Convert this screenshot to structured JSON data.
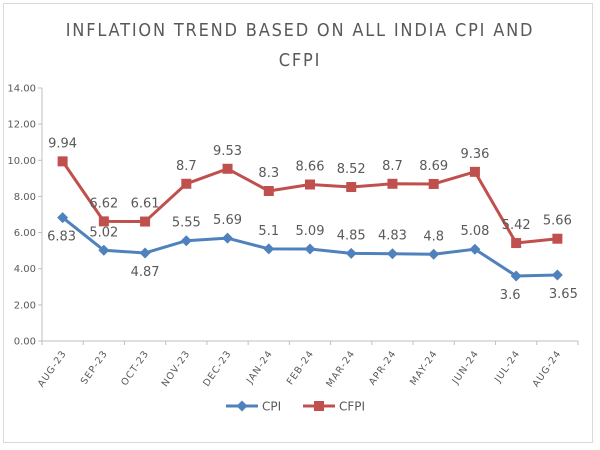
{
  "chart_data": {
    "type": "line",
    "title_line1": "INFLATION TREND BASED ON ALL INDIA CPI AND",
    "title_line2": "CFPI",
    "xlabel": "",
    "ylabel": "",
    "ylim": [
      0,
      14
    ],
    "y_ticks": [
      "0.00",
      "2.00",
      "4.00",
      "6.00",
      "8.00",
      "10.00",
      "12.00",
      "14.00"
    ],
    "categories": [
      "AUG-23",
      "SEP-23",
      "OCT-23",
      "NOV-23",
      "DEC-23",
      "JAN-24",
      "FEB-24",
      "MAR-24",
      "APR-24",
      "MAY-24",
      "JUN-24",
      "JUL-24",
      "AUG-24"
    ],
    "series": [
      {
        "name": "CPI",
        "color": "#4f81bd",
        "marker": "diamond",
        "values": [
          6.83,
          5.02,
          4.87,
          5.55,
          5.69,
          5.1,
          5.09,
          4.85,
          4.83,
          4.8,
          5.08,
          3.6,
          3.65
        ],
        "labels": [
          "6.83",
          "5.02",
          "4.87",
          "5.55",
          "5.69",
          "5.1",
          "5.09",
          "4.85",
          "4.83",
          "4.8",
          "5.08",
          "3.6",
          "3.65"
        ]
      },
      {
        "name": "CFPI",
        "color": "#c0504d",
        "marker": "square",
        "values": [
          9.94,
          6.62,
          6.61,
          8.7,
          9.53,
          8.3,
          8.66,
          8.52,
          8.7,
          8.69,
          9.36,
          5.42,
          5.66
        ],
        "labels": [
          "9.94",
          "6.62",
          "6.61",
          "8.7",
          "9.53",
          "8.3",
          "8.66",
          "8.52",
          "8.7",
          "8.69",
          "9.36",
          "5.42",
          "5.66"
        ]
      }
    ],
    "grid": false,
    "legend": "bottom"
  }
}
